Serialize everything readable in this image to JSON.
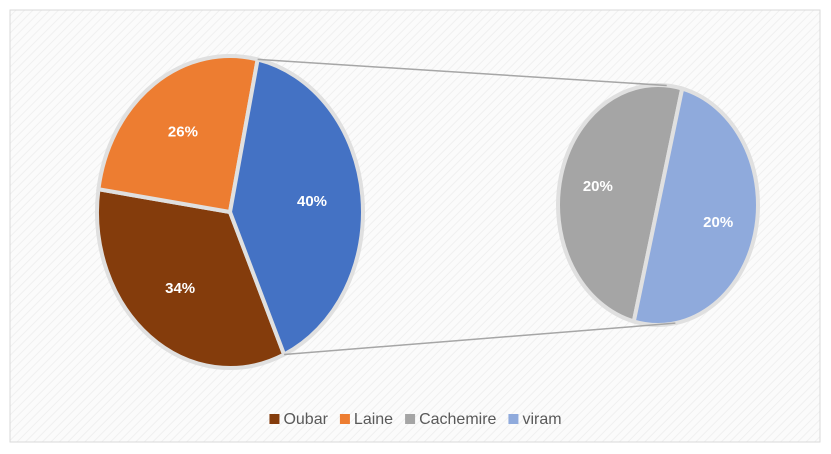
{
  "chart_data": {
    "type": "pie-of-pie",
    "primary": {
      "categories": [
        "Oubar",
        "Laine",
        null
      ],
      "values": [
        34,
        26,
        40
      ],
      "value_labels": [
        "34%",
        "26%",
        "40%"
      ],
      "colors": [
        "#843c0c",
        "#ed7d31",
        "#4472c4"
      ]
    },
    "secondary": {
      "categories": [
        "Cachemire",
        "viram"
      ],
      "values": [
        20,
        20
      ],
      "value_labels": [
        "20%",
        "20%"
      ],
      "colors": [
        "#a5a5a5",
        "#8faadc"
      ]
    },
    "legend": "bottom"
  }
}
